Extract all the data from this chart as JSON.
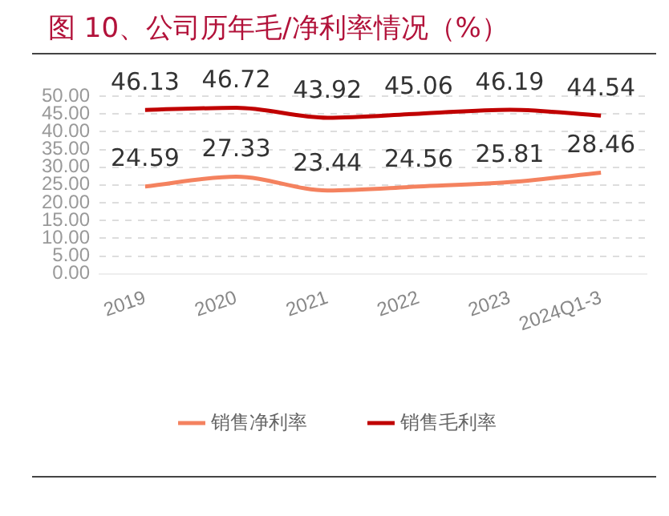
{
  "chart_data": {
    "type": "line",
    "title": "图 10、公司历年毛/净利率情况（%）",
    "categories": [
      "2019",
      "2020",
      "2021",
      "2022",
      "2023",
      "2024Q1-3"
    ],
    "series": [
      {
        "name": "销售净利率",
        "color": "#f4825f",
        "values": [
          24.59,
          27.33,
          23.44,
          24.56,
          25.81,
          28.46
        ]
      },
      {
        "name": "销售毛利率",
        "color": "#c00000",
        "values": [
          46.13,
          46.72,
          43.92,
          45.06,
          46.19,
          44.54
        ]
      }
    ],
    "ylim": [
      0,
      50
    ],
    "yticks": [
      {
        "value": 0,
        "label": "0.00"
      },
      {
        "value": 5,
        "label": "5.00"
      },
      {
        "value": 10,
        "label": "10.00"
      },
      {
        "value": 15,
        "label": "15.00"
      },
      {
        "value": 20,
        "label": "20.00"
      },
      {
        "value": 25,
        "label": "25.00"
      },
      {
        "value": 30,
        "label": "30.00"
      },
      {
        "value": 35,
        "label": "35.00"
      },
      {
        "value": 40,
        "label": "40.00"
      },
      {
        "value": 45,
        "label": "45.00"
      },
      {
        "value": 50,
        "label": "50.00"
      }
    ],
    "grid": "y",
    "legend": "bottom",
    "marker": "none",
    "line_style": "solid",
    "data_labels": true
  }
}
